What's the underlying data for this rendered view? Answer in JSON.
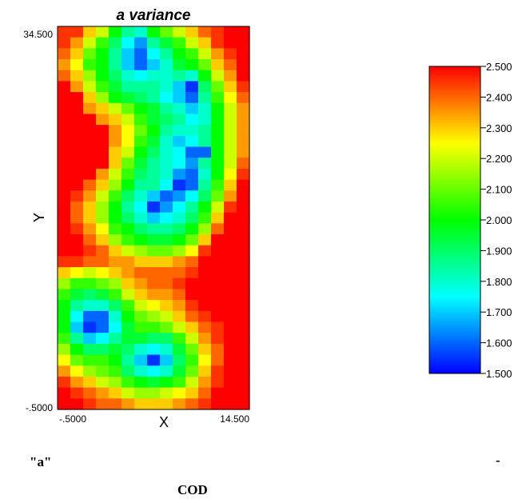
{
  "chart_data": {
    "type": "heatmap",
    "title": "a variance",
    "xlabel": "X",
    "ylabel": "Y",
    "xlim": [
      -0.5,
      14.5
    ],
    "ylim": [
      -0.5,
      34.5
    ],
    "x_tick_labels": [
      "-.5000",
      "14.500"
    ],
    "y_tick_labels": [
      "-.5000",
      "34.500"
    ],
    "colorbar": {
      "range": [
        1.5,
        2.5
      ],
      "tick_labels": [
        "2.500",
        "2.400",
        "2.300",
        "2.200",
        "2.100",
        "2.000",
        "1.900",
        "1.800",
        "1.700",
        "1.600",
        "1.500"
      ]
    },
    "grid_rows_top_to_bottom": [
      [
        2.45,
        2.45,
        2.3,
        2.2,
        2.0,
        1.85,
        1.8,
        2.0,
        2.1,
        2.2,
        2.3,
        2.4,
        2.45,
        2.5,
        2.5
      ],
      [
        2.45,
        2.35,
        2.2,
        2.05,
        1.9,
        1.75,
        1.65,
        1.85,
        1.95,
        2.05,
        2.2,
        2.3,
        2.45,
        2.5,
        2.5
      ],
      [
        2.4,
        2.3,
        2.1,
        2.0,
        1.85,
        1.7,
        1.6,
        1.75,
        1.85,
        2.0,
        2.05,
        2.2,
        2.35,
        2.45,
        2.5
      ],
      [
        2.35,
        2.25,
        2.05,
        2.0,
        1.85,
        1.7,
        1.6,
        1.7,
        1.8,
        1.95,
        2.0,
        2.1,
        2.3,
        2.4,
        2.5
      ],
      [
        2.4,
        2.3,
        2.15,
        2.0,
        1.9,
        1.8,
        1.75,
        1.8,
        1.8,
        1.85,
        1.8,
        2.0,
        2.2,
        2.35,
        2.5
      ],
      [
        2.5,
        2.35,
        2.2,
        2.05,
        1.95,
        1.85,
        1.85,
        1.85,
        1.8,
        1.7,
        1.55,
        1.9,
        2.1,
        2.3,
        2.45
      ],
      [
        2.5,
        2.5,
        2.3,
        2.15,
        2.0,
        1.95,
        1.9,
        1.85,
        1.75,
        1.7,
        1.6,
        1.85,
        2.05,
        2.25,
        2.4
      ],
      [
        2.5,
        2.5,
        2.35,
        2.3,
        2.2,
        2.1,
        2.0,
        1.95,
        1.85,
        1.8,
        1.7,
        1.8,
        2.0,
        2.2,
        2.35
      ],
      [
        2.5,
        2.5,
        2.5,
        2.35,
        2.3,
        2.2,
        2.05,
        1.95,
        1.9,
        1.85,
        1.75,
        1.8,
        2.0,
        2.2,
        2.35
      ],
      [
        2.5,
        2.5,
        2.5,
        2.5,
        2.35,
        2.25,
        2.1,
        2.0,
        1.85,
        1.8,
        1.8,
        1.85,
        2.0,
        2.2,
        2.35
      ],
      [
        2.5,
        2.5,
        2.5,
        2.5,
        2.35,
        2.25,
        2.05,
        1.95,
        1.8,
        1.7,
        1.75,
        1.85,
        2.0,
        2.2,
        2.35
      ],
      [
        2.5,
        2.5,
        2.5,
        2.5,
        2.3,
        2.2,
        2.0,
        1.9,
        1.8,
        1.75,
        1.6,
        1.6,
        2.0,
        2.2,
        2.35
      ],
      [
        2.5,
        2.5,
        2.5,
        2.5,
        2.3,
        2.1,
        1.95,
        1.85,
        1.8,
        1.75,
        1.65,
        1.85,
        2.0,
        2.2,
        2.4
      ],
      [
        2.5,
        2.5,
        2.5,
        2.35,
        2.2,
        2.05,
        1.9,
        1.85,
        1.8,
        1.65,
        1.6,
        1.8,
        2.0,
        2.25,
        2.45
      ],
      [
        2.5,
        2.5,
        2.4,
        2.3,
        2.15,
        2.0,
        1.85,
        1.85,
        1.75,
        1.55,
        1.6,
        1.85,
        2.05,
        2.3,
        2.5
      ],
      [
        2.5,
        2.45,
        2.35,
        2.2,
        2.05,
        1.9,
        1.8,
        1.7,
        1.6,
        1.65,
        1.75,
        1.9,
        2.1,
        2.35,
        2.5
      ],
      [
        2.5,
        2.4,
        2.3,
        2.15,
        2.0,
        1.85,
        1.75,
        1.55,
        1.65,
        1.75,
        1.85,
        2.0,
        2.2,
        2.45,
        2.5
      ],
      [
        2.5,
        2.4,
        2.3,
        2.15,
        2.0,
        1.9,
        1.8,
        1.7,
        1.75,
        1.8,
        1.9,
        2.05,
        2.3,
        2.5,
        2.5
      ],
      [
        2.5,
        2.45,
        2.35,
        2.25,
        2.05,
        2.0,
        1.9,
        1.85,
        1.85,
        1.9,
        2.0,
        2.15,
        2.4,
        2.5,
        2.5
      ],
      [
        2.5,
        2.5,
        2.4,
        2.3,
        2.15,
        2.05,
        2.0,
        1.95,
        1.95,
        2.0,
        2.1,
        2.3,
        2.5,
        2.5,
        2.5
      ],
      [
        2.5,
        2.5,
        2.45,
        2.4,
        2.3,
        2.2,
        2.15,
        2.1,
        2.1,
        2.15,
        2.25,
        2.45,
        2.5,
        2.5,
        2.5
      ],
      [
        2.45,
        2.45,
        2.4,
        2.4,
        2.35,
        2.35,
        2.3,
        2.3,
        2.3,
        2.35,
        2.4,
        2.5,
        2.5,
        2.5,
        2.5
      ],
      [
        2.3,
        2.25,
        2.2,
        2.25,
        2.3,
        2.35,
        2.4,
        2.4,
        2.4,
        2.4,
        2.45,
        2.5,
        2.5,
        2.5,
        2.5
      ],
      [
        2.15,
        2.05,
        2.05,
        2.1,
        2.15,
        2.3,
        2.35,
        2.4,
        2.4,
        2.45,
        2.5,
        2.5,
        2.5,
        2.5,
        2.5
      ],
      [
        2.05,
        1.95,
        1.9,
        1.95,
        2.05,
        2.2,
        2.3,
        2.35,
        2.35,
        2.4,
        2.5,
        2.5,
        2.5,
        2.5,
        2.5
      ],
      [
        2.0,
        1.85,
        1.8,
        1.8,
        1.9,
        2.05,
        2.2,
        2.25,
        2.3,
        2.35,
        2.45,
        2.5,
        2.5,
        2.5,
        2.5
      ],
      [
        2.0,
        1.75,
        1.6,
        1.6,
        1.8,
        2.0,
        2.1,
        2.15,
        2.2,
        2.3,
        2.4,
        2.45,
        2.5,
        2.5,
        2.5
      ],
      [
        2.0,
        1.7,
        1.55,
        1.6,
        1.75,
        1.95,
        2.05,
        2.05,
        2.1,
        2.2,
        2.3,
        2.4,
        2.45,
        2.5,
        2.5
      ],
      [
        2.05,
        1.85,
        1.7,
        1.75,
        1.85,
        1.95,
        1.95,
        1.9,
        1.9,
        2.05,
        2.2,
        2.35,
        2.45,
        2.5,
        2.5
      ],
      [
        2.15,
        2.0,
        1.9,
        1.9,
        1.95,
        1.9,
        1.8,
        1.75,
        1.8,
        1.95,
        2.1,
        2.3,
        2.4,
        2.5,
        2.5
      ],
      [
        2.25,
        2.1,
        2.05,
        2.05,
        2.0,
        1.85,
        1.7,
        1.55,
        1.7,
        1.9,
        2.05,
        2.25,
        2.4,
        2.5,
        2.5
      ],
      [
        2.35,
        2.25,
        2.15,
        2.1,
        2.05,
        1.9,
        1.8,
        1.75,
        1.8,
        1.95,
        2.1,
        2.3,
        2.45,
        2.5,
        2.5
      ],
      [
        2.45,
        2.35,
        2.3,
        2.2,
        2.15,
        2.05,
        2.0,
        1.95,
        2.0,
        2.05,
        2.2,
        2.35,
        2.45,
        2.5,
        2.5
      ],
      [
        2.5,
        2.45,
        2.4,
        2.35,
        2.3,
        2.2,
        2.15,
        2.15,
        2.2,
        2.25,
        2.3,
        2.4,
        2.5,
        2.5,
        2.5
      ],
      [
        2.5,
        2.5,
        2.45,
        2.4,
        2.4,
        2.35,
        2.3,
        2.3,
        2.3,
        2.35,
        2.4,
        2.45,
        2.5,
        2.5,
        2.5
      ]
    ]
  },
  "captions": {
    "left": "\"a\"",
    "right": "-",
    "bottom": "COD"
  }
}
